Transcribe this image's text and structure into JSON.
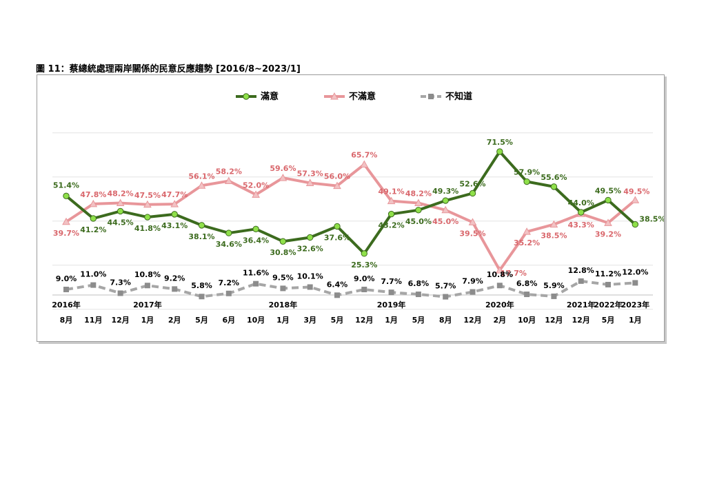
{
  "page_title": "圖 11：蔡總統處理兩岸關係的民意反應趨勢 [2016/8~2023/1]",
  "colors": {
    "satisfied": "#3c6b1e",
    "satisfied_marker": "#8fe04a",
    "dissatisfied": "#e8969a",
    "dissatisfied_text": "#d9676c",
    "dissatisfied_marker": "#f2c2c4",
    "unknown": "#a6a6a6",
    "unknown_marker": "#8c8c8c",
    "unknown_text": "#000000"
  },
  "chart_data": {
    "type": "line",
    "title": "",
    "xlabel": "",
    "ylabel": "",
    "ylim": [
      0,
      80
    ],
    "grid": "horizontal",
    "legend": "top-center",
    "x_months": [
      "8月",
      "11月",
      "12月",
      "1月",
      "2月",
      "5月",
      "6月",
      "10月",
      "1月",
      "3月",
      "5月",
      "12月",
      "1月",
      "5月",
      "8月",
      "12月",
      "2月",
      "10月",
      "12月",
      "12月",
      "5月",
      "1月"
    ],
    "x_years": [
      {
        "index": 0,
        "label": "2016年"
      },
      {
        "index": 3,
        "label": "2017年"
      },
      {
        "index": 8,
        "label": "2018年"
      },
      {
        "index": 12,
        "label": "2019年"
      },
      {
        "index": 16,
        "label": "2020年"
      },
      {
        "index": 19,
        "label": "2021年"
      },
      {
        "index": 20,
        "label": "2022年"
      },
      {
        "index": 21,
        "label": "2023年"
      }
    ],
    "series": [
      {
        "key": "satisfied",
        "name": "滿意",
        "values": [
          51.4,
          41.2,
          44.5,
          41.8,
          43.1,
          38.1,
          34.6,
          36.4,
          30.8,
          32.6,
          37.6,
          25.3,
          43.2,
          45.0,
          49.3,
          52.6,
          71.5,
          57.9,
          55.6,
          44.0,
          49.5,
          38.5
        ],
        "labels": [
          "51.4%",
          "41.2%",
          "44.5%",
          "41.8%",
          "43.1%",
          "38.1%",
          "34.6%",
          "36.4%",
          "30.8%",
          "32.6%",
          "37.6%",
          "25.3%",
          "43.2%",
          "45.0%",
          "49.3%",
          "52.6%",
          "71.5%",
          "57.9%",
          "55.6%",
          "44.0%",
          "49.5%",
          "38.5%"
        ]
      },
      {
        "key": "dissatisfied",
        "name": "不滿意",
        "values": [
          39.7,
          47.8,
          48.2,
          47.5,
          47.7,
          56.1,
          58.2,
          52.0,
          59.6,
          57.3,
          56.0,
          65.7,
          49.1,
          48.2,
          45.0,
          39.5,
          17.7,
          35.2,
          38.5,
          43.3,
          39.2,
          49.5
        ],
        "labels": [
          "39.7%",
          "47.8%",
          "48.2%",
          "47.5%",
          "47.7%",
          "56.1%",
          "58.2%",
          "52.0%",
          "59.6%",
          "57.3%",
          "56.0%",
          "65.7%",
          "49.1%",
          "48.2%",
          "45.0%",
          "39.5%",
          "17.7%",
          "35.2%",
          "38.5%",
          "43.3%",
          "39.2%",
          "49.5%"
        ]
      },
      {
        "key": "unknown",
        "name": "不知道",
        "values": [
          9.0,
          11.0,
          7.3,
          10.8,
          9.2,
          5.8,
          7.2,
          11.6,
          9.5,
          10.1,
          6.4,
          9.0,
          7.7,
          6.8,
          5.7,
          7.9,
          10.8,
          6.8,
          5.9,
          12.8,
          11.2,
          12.0
        ],
        "labels": [
          "9.0%",
          "11.0%",
          "7.3%",
          "10.8%",
          "9.2%",
          "5.8%",
          "7.2%",
          "11.6%",
          "9.5%",
          "10.1%",
          "6.4%",
          "9.0%",
          "7.7%",
          "6.8%",
          "5.7%",
          "7.9%",
          "10.8%",
          "6.8%",
          "5.9%",
          "12.8%",
          "11.2%",
          "12.0%"
        ]
      }
    ]
  }
}
